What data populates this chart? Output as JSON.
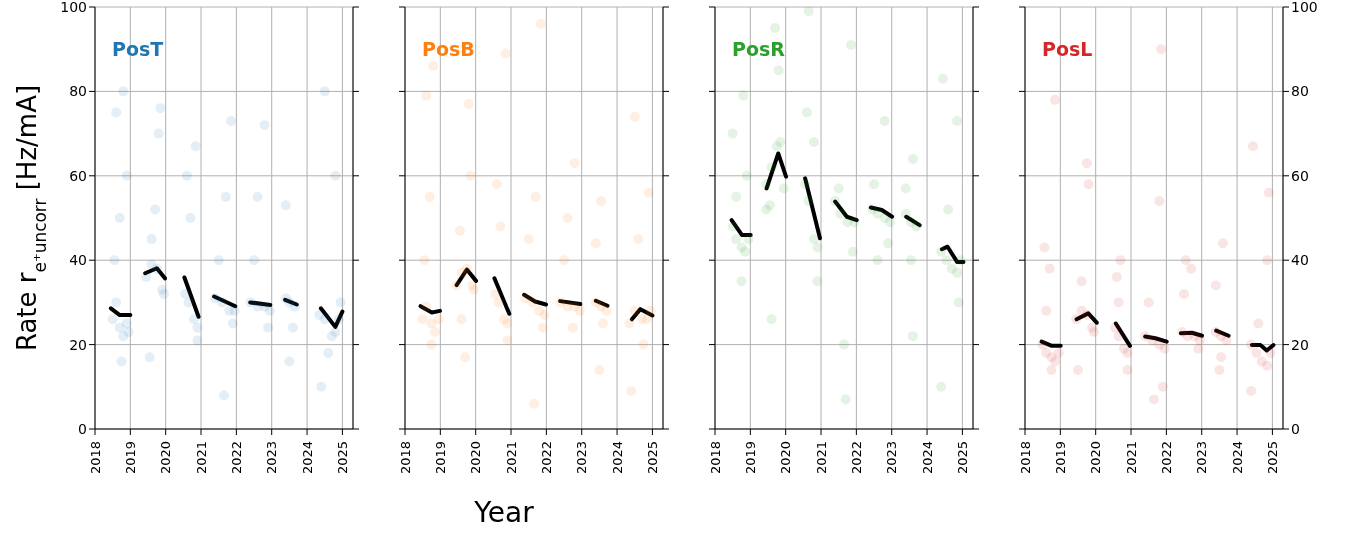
{
  "chart_data": [
    {
      "type": "scatter",
      "ylabel": "Rate r$_{e⁺}$$_{uncorr}$ [Hz/mA]",
      "xlim": [
        2018,
        2025.3
      ],
      "xticks": [
        2018,
        2019,
        2020,
        2021,
        2022,
        2023,
        2024,
        2025
      ],
      "ylim": [
        0,
        100
      ],
      "yticks": [
        0,
        20,
        40,
        60,
        80,
        100
      ],
      "grid": true,
      "series": [
        {
          "type": "scatter",
          "marker": "circle",
          "name": "PosT",
          "color": "#1f77b4",
          "x": [
            2018.5,
            2018.6,
            2018.7,
            2018.8,
            2018.9,
            2018.95,
            2018.55,
            2018.7,
            2018.6,
            2018.8,
            2018.9,
            2018.75,
            2019.45,
            2019.6,
            2019.75,
            2019.9,
            2019.95,
            2019.6,
            2019.8,
            2019.85,
            2019.55,
            2019.7,
            2020.55,
            2020.65,
            2020.8,
            2020.9,
            2020.6,
            2020.7,
            2020.9,
            2020.85,
            2021.4,
            2021.6,
            2021.8,
            2021.95,
            2021.9,
            2021.5,
            2021.65,
            2021.85,
            2021.7,
            2022.4,
            2022.6,
            2022.8,
            2022.95,
            2022.5,
            2022.8,
            2022.9,
            2022.6,
            2023.4,
            2023.5,
            2023.65,
            2023.4,
            2023.6,
            2023.5,
            2024.35,
            2024.5,
            2024.7,
            2024.8,
            2024.9,
            2024.95,
            2024.4,
            2024.5,
            2024.8,
            2024.6
          ],
          "values": [
            26,
            30,
            24,
            22,
            25,
            23,
            40,
            50,
            75,
            80,
            60,
            16,
            36,
            39,
            38,
            33,
            32,
            45,
            70,
            76,
            17,
            52,
            32,
            30,
            26,
            24,
            60,
            50,
            21,
            67,
            31,
            30,
            28,
            28,
            25,
            40,
            8,
            73,
            55,
            30,
            29,
            29,
            28,
            40,
            72,
            24,
            55,
            31,
            30,
            29,
            53,
            24,
            16,
            27,
            26,
            22,
            23,
            26,
            30,
            10,
            80,
            60,
            18
          ]
        },
        {
          "type": "line",
          "color": "#000000",
          "x": [
            2018.45,
            2018.7,
            2019.0,
            2019.2,
            2019.42,
            2019.75,
            2019.98,
            2020.2,
            2020.53,
            2020.93,
            2021.1,
            2021.37,
            2021.68,
            2021.97,
            2022.2,
            2022.39,
            2022.96,
            2023.2,
            2023.38,
            2023.71,
            2024.0,
            2024.39,
            2024.8,
            2025.0
          ],
          "values": [
            28.6,
            27,
            27,
            null,
            36.9,
            38.1,
            35.7,
            null,
            35.9,
            26.6,
            null,
            31.4,
            30.2,
            29.1,
            null,
            30,
            29.4,
            null,
            30.6,
            29.5,
            null,
            28.6,
            24.2,
            27.8
          ]
        }
      ]
    },
    {
      "type": "scatter",
      "xlabel": "Year",
      "xlim": [
        2018,
        2025.3
      ],
      "xticks": [
        2018,
        2019,
        2020,
        2021,
        2022,
        2023,
        2024,
        2025
      ],
      "ylim": [
        0,
        100
      ],
      "yticks": [
        0,
        20,
        40,
        60,
        80,
        100
      ],
      "grid": true,
      "tick_labels": "x",
      "series": [
        {
          "type": "scatter",
          "marker": "circle",
          "name": "PosB",
          "color": "#ff7f0e",
          "x": [
            2018.5,
            2018.6,
            2018.75,
            2018.85,
            2018.95,
            2018.55,
            2018.7,
            2018.6,
            2018.8,
            2018.75,
            2019.45,
            2019.6,
            2019.75,
            2019.9,
            2019.95,
            2019.55,
            2019.8,
            2019.7,
            2019.6,
            2019.85,
            2020.55,
            2020.65,
            2020.8,
            2020.9,
            2020.6,
            2020.7,
            2020.9,
            2020.85,
            2021.4,
            2021.6,
            2021.8,
            2021.95,
            2021.9,
            2021.5,
            2021.65,
            2021.85,
            2021.7,
            2022.4,
            2022.6,
            2022.8,
            2022.95,
            2022.5,
            2022.8,
            2022.75,
            2022.6,
            2023.4,
            2023.55,
            2023.7,
            2023.4,
            2023.6,
            2023.5,
            2023.55,
            2024.35,
            2024.5,
            2024.7,
            2024.85,
            2024.95,
            2024.4,
            2024.5,
            2024.9,
            2024.75,
            2024.6
          ],
          "values": [
            26,
            29,
            25,
            23,
            26,
            40,
            55,
            79,
            86,
            20,
            34,
            37,
            38,
            34,
            33,
            47,
            77,
            17,
            26,
            60,
            32,
            30,
            26,
            25,
            58,
            48,
            21,
            89,
            31,
            30,
            28,
            27,
            24,
            45,
            6,
            96,
            55,
            30,
            29,
            29,
            28,
            40,
            63,
            24,
            50,
            30,
            29,
            28,
            44,
            25,
            14,
            54,
            25,
            28,
            26,
            26,
            28,
            9,
            74,
            56,
            20,
            45
          ]
        },
        {
          "type": "line",
          "color": "#000000",
          "x": [
            2018.44,
            2018.76,
            2018.99,
            2019.2,
            2019.46,
            2019.75,
            2020.01,
            2020.2,
            2020.53,
            2020.95,
            2021.1,
            2021.37,
            2021.68,
            2021.99,
            2022.2,
            2022.39,
            2022.96,
            2023.2,
            2023.4,
            2023.73,
            2024.0,
            2024.42,
            2024.66,
            2025.0
          ],
          "values": [
            29.1,
            27.6,
            28,
            null,
            34.1,
            37.8,
            35.1,
            null,
            35.7,
            27.3,
            null,
            31.8,
            30.2,
            29.5,
            null,
            30.3,
            29.6,
            null,
            30.4,
            29.2,
            null,
            26,
            28.4,
            26.9
          ]
        }
      ]
    },
    {
      "type": "scatter",
      "xlim": [
        2018,
        2025.3
      ],
      "xticks": [
        2018,
        2019,
        2020,
        2021,
        2022,
        2023,
        2024,
        2025
      ],
      "ylim": [
        0,
        100
      ],
      "yticks": [
        0,
        20,
        40,
        60,
        80,
        100
      ],
      "grid": true,
      "tick_labels": "x",
      "series": [
        {
          "type": "scatter",
          "marker": "circle",
          "name": "PosR",
          "color": "#2ca02c",
          "x": [
            2018.5,
            2018.6,
            2018.75,
            2018.85,
            2018.95,
            2018.6,
            2018.5,
            2018.8,
            2018.75,
            2018.9,
            2019.45,
            2019.6,
            2019.75,
            2019.85,
            2019.95,
            2019.55,
            2019.7,
            2019.8,
            2019.6,
            2019.45,
            2020.55,
            2020.65,
            2020.8,
            2020.9,
            2020.6,
            2020.65,
            2020.9,
            2020.8,
            2021.4,
            2021.55,
            2021.75,
            2021.95,
            2021.5,
            2021.65,
            2021.85,
            2021.9,
            2021.7,
            2022.45,
            2022.6,
            2022.8,
            2022.95,
            2022.5,
            2022.8,
            2022.9,
            2022.6,
            2023.4,
            2023.55,
            2023.7,
            2023.4,
            2023.6,
            2023.55,
            2023.6,
            2024.4,
            2024.55,
            2024.7,
            2024.85,
            2024.95,
            2024.4,
            2024.45,
            2024.85,
            2024.9,
            2024.6
          ],
          "values": [
            48,
            45,
            43,
            42,
            45,
            55,
            70,
            79,
            35,
            60,
            58,
            62,
            67,
            68,
            57,
            53,
            95,
            85,
            26,
            52,
            58,
            54,
            45,
            43,
            75,
            99,
            35,
            68,
            54,
            51,
            49,
            49,
            57,
            20,
            91,
            42,
            7,
            52,
            51,
            50,
            49,
            58,
            73,
            44,
            40,
            51,
            49,
            48,
            57,
            64,
            40,
            22,
            42,
            40,
            38,
            37,
            40,
            10,
            83,
            73,
            30,
            52
          ]
        },
        {
          "type": "line",
          "color": "#000000",
          "x": [
            2018.47,
            2018.76,
            2019.01,
            2019.2,
            2019.46,
            2019.79,
            2020.01,
            2020.2,
            2020.55,
            2020.97,
            2021.1,
            2021.4,
            2021.73,
            2022.01,
            2022.2,
            2022.41,
            2022.72,
            2023.01,
            2023.2,
            2023.41,
            2023.79,
            2024.0,
            2024.42,
            2024.58,
            2024.85,
            2025.03
          ],
          "values": [
            49.5,
            46,
            46,
            null,
            57,
            65.3,
            59.8,
            null,
            59.4,
            45.2,
            null,
            53.9,
            50.3,
            49.5,
            null,
            52.5,
            51.9,
            50.3,
            null,
            50.3,
            48.3,
            null,
            42.6,
            43.2,
            39.6,
            39.6
          ]
        }
      ]
    },
    {
      "type": "scatter",
      "xlim": [
        2018,
        2025.3
      ],
      "xticks": [
        2018,
        2019,
        2020,
        2021,
        2022,
        2023,
        2024,
        2025
      ],
      "y2lim": [
        0,
        100
      ],
      "y2ticks": [
        0,
        20,
        40,
        60,
        80,
        100
      ],
      "grid": true,
      "series": [
        {
          "type": "scatter",
          "marker": "circle",
          "name": "PosL",
          "color": "#d62728",
          "axis": "y2",
          "x": [
            2018.5,
            2018.6,
            2018.75,
            2018.85,
            2018.95,
            2018.6,
            2018.7,
            2018.85,
            2018.75,
            2018.55,
            2019.45,
            2019.6,
            2019.75,
            2019.9,
            2019.95,
            2019.5,
            2019.75,
            2019.8,
            2019.6,
            2020.55,
            2020.65,
            2020.8,
            2020.9,
            2020.6,
            2020.7,
            2020.9,
            2020.65,
            2021.4,
            2021.6,
            2021.8,
            2021.95,
            2021.5,
            2021.65,
            2021.85,
            2021.9,
            2021.8,
            2022.45,
            2022.6,
            2022.8,
            2022.95,
            2022.5,
            2022.7,
            2022.9,
            2022.55,
            2023.4,
            2023.55,
            2023.7,
            2023.4,
            2023.6,
            2023.55,
            2023.5,
            2024.4,
            2024.55,
            2024.7,
            2024.85,
            2024.95,
            2024.4,
            2024.45,
            2024.9,
            2024.85,
            2024.6
          ],
          "values": [
            20,
            18,
            17,
            16,
            18,
            28,
            38,
            78,
            14,
            43,
            26,
            28,
            27,
            24,
            23,
            14,
            63,
            58,
            35,
            24,
            22,
            19,
            18,
            36,
            40,
            14,
            30,
            22,
            21,
            20,
            19,
            30,
            7,
            90,
            10,
            54,
            23,
            22,
            22,
            21,
            32,
            38,
            19,
            40,
            23,
            22,
            21,
            34,
            44,
            17,
            14,
            20,
            18,
            16,
            15,
            18,
            9,
            67,
            56,
            40,
            25
          ]
        },
        {
          "type": "line",
          "color": "#000000",
          "axis": "y2",
          "x": [
            2018.47,
            2018.76,
            2019.01,
            2019.2,
            2019.46,
            2019.79,
            2020.03,
            2020.2,
            2020.57,
            2020.97,
            2021.1,
            2021.4,
            2021.69,
            2022.01,
            2022.2,
            2022.41,
            2022.72,
            2023.01,
            2023.2,
            2023.41,
            2023.76,
            2024.0,
            2024.42,
            2024.66,
            2024.84,
            2025.03
          ],
          "values": [
            20.7,
            19.7,
            19.7,
            null,
            26,
            27.4,
            25.2,
            null,
            25,
            19.7,
            null,
            21.9,
            21.5,
            20.7,
            null,
            22.7,
            22.8,
            22.1,
            null,
            23.3,
            22.1,
            null,
            19.9,
            19.9,
            18.6,
            19.9
          ]
        }
      ]
    }
  ]
}
